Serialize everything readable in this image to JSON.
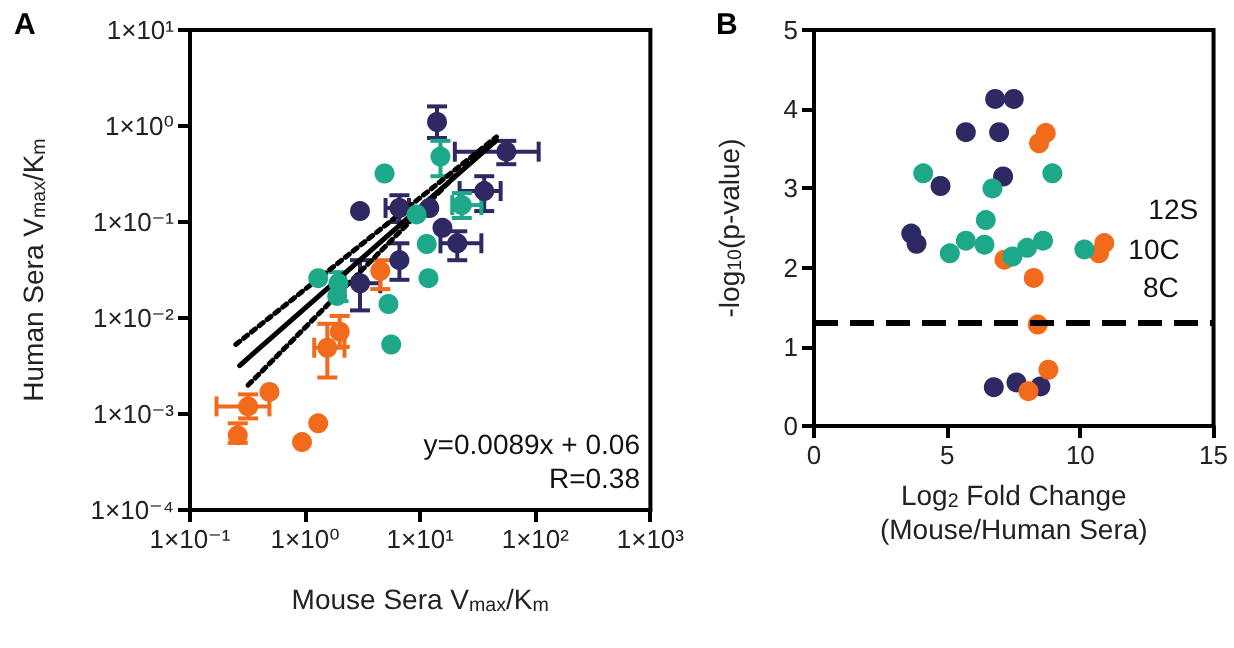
{
  "chart_data": [
    {
      "type": "scatter",
      "title": "A",
      "xlabel": "Mouse Sera V$_{max}$/K$_{m}$",
      "ylabel": "Human Sera V$_{max}$/K$_{m}$",
      "log": "xy",
      "xlim": [
        0.1,
        1000
      ],
      "ylim": [
        0.0001,
        10
      ],
      "xticks": [
        {
          "value": 0.1,
          "label": "1×10⁻¹"
        },
        {
          "value": 1,
          "label": "1×10⁰"
        },
        {
          "value": 10,
          "label": "1×10¹"
        },
        {
          "value": 100,
          "label": "1×10²"
        },
        {
          "value": 1000,
          "label": "1×10³"
        }
      ],
      "yticks": [
        {
          "value": 0.0001,
          "label": "1×10⁻⁴"
        },
        {
          "value": 0.001,
          "label": "1×10⁻³"
        },
        {
          "value": 0.01,
          "label": "1×10⁻²"
        },
        {
          "value": 0.1,
          "label": "1×10⁻¹"
        },
        {
          "value": 1,
          "label": "1×10⁰"
        },
        {
          "value": 10,
          "label": "1×10¹"
        }
      ],
      "marker": "circle",
      "series": [
        {
          "color": "#2e2962",
          "x": [
            14,
            56,
            36,
            3,
            6.6,
            12,
            15.6,
            21,
            6.6,
            3
          ],
          "values": [
            1.1,
            0.54,
            0.21,
            0.13,
            0.14,
            0.14,
            0.087,
            0.06,
            0.04,
            0.023
          ],
          "errors": [
            [
              0.75,
              1.6
            ],
            [
              0.4,
              0.7
            ],
            [
              0.13,
              0.3
            ],
            null,
            [
              0.1,
              0.19
            ],
            null,
            null,
            [
              0.04,
              0.08
            ],
            [
              0.025,
              0.06
            ],
            [
              0.012,
              0.04
            ]
          ],
          "xerrors": [
            null,
            [
              20,
              107
            ],
            [
              22,
              50
            ],
            null,
            [
              5,
              8
            ],
            null,
            null,
            [
              15,
              34
            ],
            null,
            [
              2.2,
              4.5
            ]
          ]
        },
        {
          "color": "#1ea88a",
          "x": [
            4.9,
            15,
            23,
            9.3,
            11.4,
            11.8,
            1.3,
            1.95,
            1.9,
            5.3,
            5.6
          ],
          "values": [
            0.32,
            0.48,
            0.15,
            0.12,
            0.059,
            0.026,
            0.026,
            0.023,
            0.017,
            0.014,
            0.0053
          ],
          "errors": [
            null,
            [
              0.3,
              0.7
            ],
            [
              0.11,
              0.2
            ],
            null,
            null,
            null,
            null,
            [
              0.015,
              0.03
            ],
            null,
            null,
            null
          ],
          "xerrors": [
            null,
            null,
            [
              19,
              34
            ],
            null,
            null,
            null,
            null,
            null,
            null,
            null,
            null
          ]
        },
        {
          "color": "#f26a1b",
          "x": [
            4.5,
            2,
            1.56,
            0.49,
            0.32,
            0.26,
            1.3,
            0.94
          ],
          "values": [
            0.031,
            0.0072,
            0.0049,
            0.0017,
            0.0012,
            0.0006,
            0.0008,
            0.00051
          ],
          "errors": [
            [
              0.02,
              0.04
            ],
            [
              0.005,
              0.0105
            ],
            [
              0.0024,
              0.0087
            ],
            null,
            [
              0.0009,
              0.0016
            ],
            [
              0.0005,
              0.0008
            ],
            null,
            null
          ],
          "xerrors": [
            null,
            null,
            [
              1.2,
              2.2
            ],
            null,
            [
              0.17,
              0.49
            ],
            null,
            null,
            null
          ]
        },
        {
          "type": "line",
          "marker": "none",
          "color": "#000000",
          "line_style": "solid",
          "x": [
            0.27,
            46
          ],
          "values": [
            0.0032,
            0.71
          ]
        },
        {
          "type": "line",
          "marker": "none",
          "color": "#000000",
          "line_style": "dotted",
          "x": [
            0.25,
            46
          ],
          "values": [
            0.0053,
            0.77
          ]
        },
        {
          "type": "line",
          "marker": "none",
          "color": "#000000",
          "line_style": "dotted",
          "x": [
            0.32,
            20
          ],
          "values": [
            0.002,
            0.3
          ]
        }
      ],
      "annotations": [
        "y=0.0089x + 0.06",
        "R=0.38"
      ]
    },
    {
      "type": "scatter",
      "title": "B",
      "xlabel": "Log$_{2}$ Fold Change\n(Mouse/Human Sera)",
      "ylabel": "-log$_{10}$(p-value)",
      "xlim": [
        0,
        15
      ],
      "ylim": [
        0,
        5
      ],
      "xticks": [
        0,
        5,
        10,
        15
      ],
      "yticks": [
        0,
        1,
        2,
        3,
        4,
        5
      ],
      "marker": "circle",
      "series": [
        {
          "color": "#2e2962",
          "x": [
            6.8,
            7.5,
            5.7,
            6.95,
            4.75,
            7.1,
            3.65,
            3.85,
            6.75,
            7.6,
            8.5
          ],
          "values": [
            4.13,
            4.13,
            3.71,
            3.71,
            3.03,
            3.15,
            2.43,
            2.3,
            0.49,
            0.55,
            0.5
          ]
        },
        {
          "color": "#f26a1b",
          "x": [
            8.45,
            8.7,
            7.15,
            8.25,
            8.4,
            8.8,
            8.05,
            10.9,
            10.7
          ],
          "values": [
            3.57,
            3.7,
            2.1,
            1.87,
            1.28,
            0.71,
            0.44,
            2.31,
            2.18
          ]
        },
        {
          "color": "#1ea88a",
          "x": [
            4.1,
            6.7,
            8.95,
            6.45,
            5.1,
            5.7,
            6.4,
            7.45,
            8.0,
            8.6,
            10.15
          ],
          "values": [
            3.19,
            3.0,
            3.19,
            2.6,
            2.18,
            2.34,
            2.29,
            2.14,
            2.25,
            2.34,
            2.23
          ]
        }
      ],
      "ref_lines": [
        {
          "axis": "y",
          "value": 1.3,
          "color": "#000000",
          "line_style": "dashed"
        }
      ],
      "annotations": [
        {
          "text": "12S",
          "x": 10.9,
          "y": 2.31
        },
        {
          "text": "10C",
          "x": 10.15,
          "y": 2.23
        },
        {
          "text": "8C",
          "x": 10.7,
          "y": 2.18
        }
      ]
    }
  ]
}
